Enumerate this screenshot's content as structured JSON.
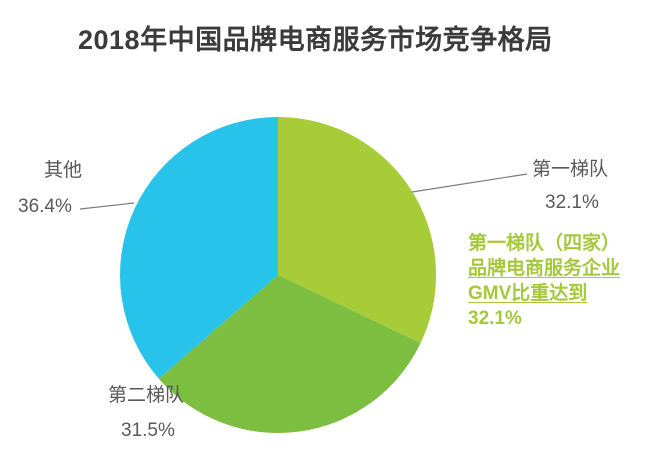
{
  "chart_data": {
    "type": "pie",
    "title": "2018年中国品牌电商服务市场竞争格局",
    "legend_position": "none",
    "labels_outside": true,
    "slices": [
      {
        "label": "第一梯队",
        "value": 32.1,
        "display_pct": "32.1%",
        "color": "#a8cb38"
      },
      {
        "label": "第二梯队",
        "value": 31.5,
        "display_pct": "31.5%",
        "color": "#7bbe40"
      },
      {
        "label": "其他",
        "value": 36.4,
        "display_pct": "36.4%",
        "color": "#27c3ea"
      }
    ],
    "start_angle": "top",
    "direction": "clockwise"
  },
  "labels": {
    "tier1": {
      "name": "第一梯队",
      "pct": "32.1%"
    },
    "tier2": {
      "name": "第二梯队",
      "pct": "31.5%"
    },
    "other": {
      "name": "其他",
      "pct": "36.4%"
    }
  },
  "annotation": {
    "color": "#a6c83d",
    "lines": [
      "第一梯队（四家）",
      "品牌电商服务企业",
      "GMV比重达到",
      "32.1%"
    ]
  },
  "colors": {
    "title_text": "#3b3b3b",
    "label_text": "#595959",
    "leader_line": "#7a7a7a",
    "background": "#ffffff"
  }
}
